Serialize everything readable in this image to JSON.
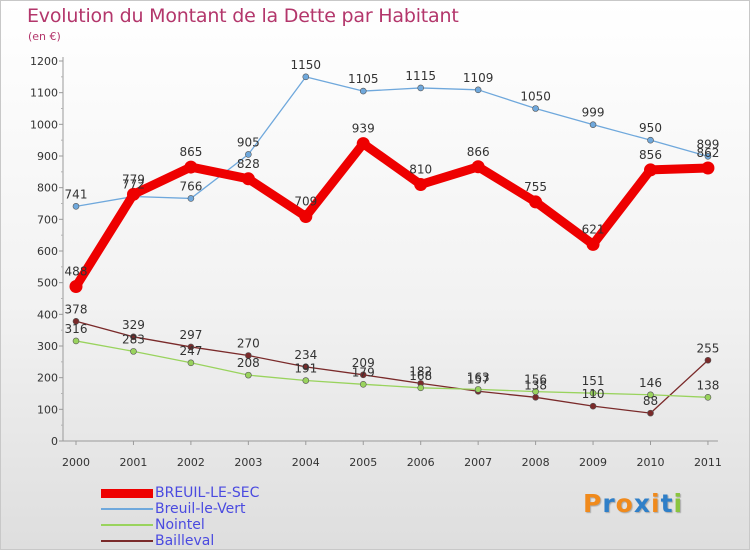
{
  "header": {
    "title": "Evolution du Montant de la Dette par Habitant",
    "subtitle": "(en €)"
  },
  "brand": {
    "letters": [
      "P",
      "r",
      "o",
      "x",
      "i",
      "t",
      "i"
    ],
    "colors": [
      "#f08a1c",
      "#2f7fc8",
      "#f08a1c",
      "#2f7fc8",
      "#f08a1c",
      "#2f7fc8",
      "#8ac43f"
    ]
  },
  "chart_data": {
    "type": "line",
    "title": "Evolution du Montant de la Dette par Habitant",
    "subtitle": "(en €)",
    "xlabel": "",
    "ylabel": "",
    "categories": [
      "2000",
      "2001",
      "2002",
      "2003",
      "2004",
      "2005",
      "2006",
      "2007",
      "2008",
      "2009",
      "2010",
      "2011"
    ],
    "ylim": [
      0,
      1200
    ],
    "yticks": [
      0,
      100,
      200,
      300,
      400,
      500,
      600,
      700,
      800,
      900,
      1000,
      1100,
      1200
    ],
    "grid": false,
    "legend_position": "bottom-left",
    "series": [
      {
        "name": "BREUIL-LE-SEC",
        "color": "#ee0000",
        "emphasis": "bold",
        "values": [
          488,
          779,
          865,
          828,
          709,
          939,
          810,
          866,
          755,
          621,
          856,
          862
        ]
      },
      {
        "name": "Breuil-le-Vert",
        "color": "#6fa8dc",
        "values": [
          741,
          772,
          766,
          905,
          1150,
          1105,
          1115,
          1109,
          1050,
          999,
          950,
          899
        ]
      },
      {
        "name": "Nointel",
        "color": "#99d35d",
        "values": [
          316,
          283,
          247,
          208,
          191,
          179,
          168,
          163,
          156,
          151,
          146,
          138
        ]
      },
      {
        "name": "Bailleval",
        "color": "#7a2a2a",
        "values": [
          378,
          329,
          297,
          270,
          234,
          209,
          182,
          157,
          138,
          110,
          88,
          255
        ]
      }
    ]
  }
}
